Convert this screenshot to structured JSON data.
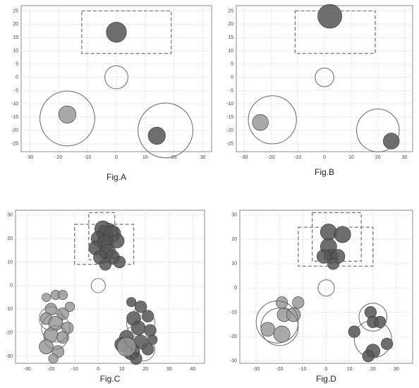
{
  "chart_data": [
    {
      "type": "scatter",
      "title": "Fig.A",
      "xlim": [
        -33,
        33
      ],
      "ylim": [
        -28,
        27
      ],
      "xticks": [
        -30,
        -20,
        -10,
        0,
        10,
        20,
        30
      ],
      "yticks": [
        -25,
        -20,
        -15,
        -10,
        -5,
        0,
        5,
        10,
        15,
        20,
        25
      ],
      "grid": true,
      "boxes": [
        {
          "x": [
            -12,
            19
          ],
          "y": [
            9,
            25
          ]
        }
      ],
      "series": [
        {
          "color": "#555555",
          "fill": true,
          "x": [
            0,
            14
          ],
          "y": [
            17,
            -22
          ],
          "r": [
            3.5,
            3
          ]
        },
        {
          "color": "#9a9a9a",
          "fill": true,
          "x": [
            -17
          ],
          "y": [
            -14
          ],
          "r": [
            3
          ]
        },
        {
          "color": "#666666",
          "fill": false,
          "x": [
            0,
            -17,
            17
          ],
          "y": [
            0,
            -15.5,
            -20
          ],
          "r": [
            4,
            9.5,
            9.5
          ]
        }
      ]
    },
    {
      "type": "scatter",
      "title": "Fig.B",
      "xlim": [
        -33,
        33
      ],
      "ylim": [
        -28,
        27
      ],
      "xticks": [
        -30,
        -20,
        -10,
        0,
        10,
        20,
        30
      ],
      "yticks": [
        -25,
        -20,
        -15,
        -10,
        -5,
        0,
        5,
        10,
        15,
        20,
        25
      ],
      "grid": true,
      "boxes": [
        {
          "x": [
            -11,
            19
          ],
          "y": [
            9,
            25
          ]
        }
      ],
      "series": [
        {
          "color": "#555555",
          "fill": true,
          "x": [
            2,
            25
          ],
          "y": [
            23,
            -24
          ],
          "r": [
            4.5,
            3
          ]
        },
        {
          "color": "#9a9a9a",
          "fill": true,
          "x": [
            -24
          ],
          "y": [
            -17
          ],
          "r": [
            3
          ]
        },
        {
          "color": "#666666",
          "fill": false,
          "x": [
            0,
            -19.5,
            20
          ],
          "y": [
            0,
            -16,
            -20
          ],
          "r": [
            3.5,
            9,
            8
          ]
        }
      ]
    },
    {
      "type": "scatter",
      "title": "Fig.C",
      "xlim": [
        -35,
        45
      ],
      "ylim": [
        -33,
        32
      ],
      "xticks": [
        -30,
        -20,
        -10,
        0,
        10,
        20,
        30,
        40
      ],
      "yticks": [
        -30,
        -20,
        -10,
        0,
        10,
        20,
        30
      ],
      "grid": true,
      "boxes": [
        {
          "x": [
            -4,
            7
          ],
          "y": [
            11,
            31
          ]
        },
        {
          "x": [
            -10,
            15
          ],
          "y": [
            9,
            26
          ]
        }
      ],
      "series": [
        {
          "color": "#555555",
          "fill": true,
          "x": [
            4,
            2,
            6,
            0,
            3,
            8,
            -1,
            4,
            1,
            6,
            3,
            9,
            14,
            18,
            15,
            21,
            17,
            22,
            12,
            18,
            14,
            21,
            16,
            10,
            23
          ],
          "y": [
            22,
            24,
            22,
            20,
            18,
            19,
            16,
            14,
            12,
            12,
            9,
            10,
            -7,
            -9,
            -14,
            -13,
            -18,
            -19,
            -22,
            -24,
            -28,
            -27,
            -31,
            -25,
            -23
          ],
          "r": [
            4.5,
            3.5,
            3.5,
            3,
            3.5,
            3,
            3,
            3.5,
            3,
            3,
            2.5,
            2.5,
            2,
            2.5,
            3,
            2.5,
            3,
            2.5,
            3,
            3,
            3.5,
            2.5,
            2.5,
            3,
            2
          ]
        },
        {
          "color": "#9a9a9a",
          "fill": true,
          "x": [
            -22,
            -18,
            -15,
            -20,
            -15,
            -22,
            -18,
            -13,
            -20,
            -15,
            -22,
            -17,
            -19,
            -12,
            12
          ],
          "y": [
            -5,
            -4,
            -4,
            -10,
            -12,
            -14,
            -16,
            -18,
            -21,
            -22,
            -26,
            -28,
            -31,
            -9,
            -26
          ],
          "r": [
            1.8,
            2,
            2,
            2.5,
            2.5,
            2.5,
            3,
            2.5,
            3,
            2.5,
            3,
            2.5,
            2,
            2,
            4
          ]
        },
        {
          "color": "#777777",
          "fill": false,
          "x": [
            0,
            -18,
            -18,
            -20,
            18,
            16,
            19
          ],
          "y": [
            0,
            -18,
            -22,
            -14,
            -16,
            -22,
            -27
          ],
          "r": [
            3,
            6,
            5,
            5,
            6,
            5,
            5
          ]
        }
      ]
    },
    {
      "type": "scatter",
      "title": "Fig.D",
      "xlim": [
        -37,
        37
      ],
      "ylim": [
        -31,
        32
      ],
      "xticks": [
        -30,
        -20,
        -10,
        0,
        10,
        20,
        30
      ],
      "yticks": [
        -30,
        -20,
        -10,
        0,
        10,
        20,
        30
      ],
      "grid": true,
      "boxes": [
        {
          "x": [
            -6,
            15
          ],
          "y": [
            11,
            31
          ]
        },
        {
          "x": [
            -12,
            20
          ],
          "y": [
            9,
            25
          ]
        }
      ],
      "series": [
        {
          "color": "#555555",
          "fill": true,
          "x": [
            1,
            7,
            1,
            2,
            5,
            -1,
            3,
            12,
            19,
            20,
            23,
            20,
            18,
            26
          ],
          "y": [
            23,
            22,
            17,
            13,
            13,
            13,
            10,
            -18,
            -10,
            -14,
            -14,
            -26,
            -28,
            -23
          ],
          "r": [
            3.5,
            3.5,
            3.5,
            3,
            3,
            3,
            2.5,
            2.5,
            2.5,
            2.5,
            2.5,
            3,
            2.5,
            2.5
          ]
        },
        {
          "color": "#9a9a9a",
          "fill": true,
          "x": [
            -25,
            -19,
            -18,
            -14,
            -12,
            -19
          ],
          "y": [
            -17,
            -19,
            -11,
            -11,
            -6,
            -6
          ],
          "r": [
            3,
            3.5,
            3,
            3,
            2.5,
            2.5
          ]
        },
        {
          "color": "#666666",
          "fill": false,
          "x": [
            0,
            -21,
            -20,
            20,
            20
          ],
          "y": [
            0,
            -14,
            -16,
            -12,
            -21
          ],
          "r": [
            3.5,
            9,
            8,
            6,
            8
          ]
        }
      ]
    }
  ]
}
